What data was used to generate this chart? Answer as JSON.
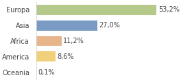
{
  "categories": [
    "Europa",
    "Asia",
    "Africa",
    "America",
    "Oceania"
  ],
  "values": [
    53.2,
    27.0,
    11.2,
    8.6,
    0.1
  ],
  "labels": [
    "53,2%",
    "27,0%",
    "11,2%",
    "8,6%",
    "0,1%"
  ],
  "bar_colors": [
    "#b5c98a",
    "#7a9cc4",
    "#e8b48a",
    "#f0d07a",
    "#d0d0d0"
  ],
  "background_color": "#ffffff",
  "xlim": [
    0,
    68
  ],
  "label_fontsize": 7.0,
  "value_fontsize": 7.0,
  "bar_height": 0.65
}
